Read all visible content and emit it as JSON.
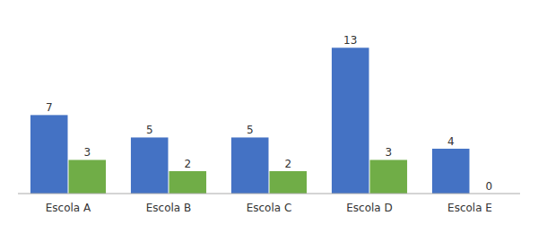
{
  "chart_data": {
    "type": "bar",
    "categories": [
      "Escola A",
      "Escola B",
      "Escola C",
      "Escola D",
      "Escola E"
    ],
    "series": [
      {
        "color": "#4472C4",
        "values": [
          7,
          5,
          5,
          13,
          4
        ]
      },
      {
        "color": "#70AD47",
        "values": [
          3,
          2,
          2,
          3,
          0
        ]
      }
    ],
    "ylim": [
      0,
      15.5
    ],
    "data_labels": true,
    "tick_labels": "x"
  }
}
